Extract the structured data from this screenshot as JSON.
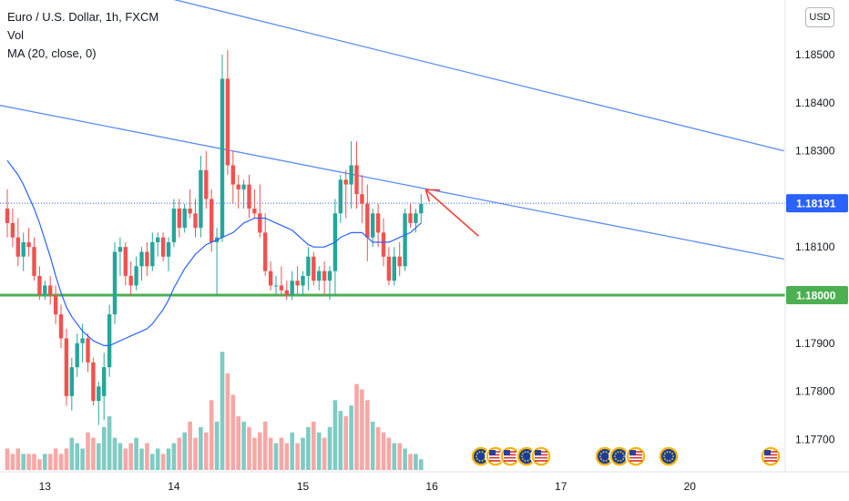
{
  "legend": {
    "title": "Euro / U.S. Dollar, 1h, FXCM",
    "vol_label": "Vol",
    "ma_label": "MA (20, close, 0)"
  },
  "currency_button": "USD",
  "colors": {
    "up": "#26a69a",
    "down": "#ef5350",
    "vol_up": "#80cbc4",
    "vol_down": "#f7a7a5",
    "ma": "#2962ff",
    "trend": "#5b8def",
    "support": "#4caf50",
    "arrow": "#f44336",
    "last_price_tag": "#2962ff",
    "support_tag": "#4caf50"
  },
  "chart_data": {
    "type": "candlestick",
    "instrument": "Euro / U.S. Dollar",
    "timeframe": "1h",
    "source": "FXCM",
    "ylim": [
      1.1764,
      1.1861
    ],
    "y_ticks": [
      "1.18500",
      "1.18400",
      "1.18300",
      "1.18100",
      "1.17900",
      "1.17800",
      "1.17700"
    ],
    "y_tick_values": [
      1.185,
      1.184,
      1.183,
      1.181,
      1.179,
      1.178,
      1.177
    ],
    "x_ticks": [
      {
        "label": "13",
        "bar": 7
      },
      {
        "label": "14",
        "bar": 31
      },
      {
        "label": "15",
        "bar": 55
      },
      {
        "label": "16",
        "bar": 79
      },
      {
        "label": "17",
        "bar": 103
      },
      {
        "label": "20",
        "bar": 127
      }
    ],
    "candles": [
      [
        1.1818,
        1.1822,
        1.1812,
        1.1815
      ],
      [
        1.1815,
        1.1818,
        1.181,
        1.1812
      ],
      [
        1.1812,
        1.1816,
        1.1806,
        1.1808
      ],
      [
        1.1808,
        1.1813,
        1.1805,
        1.1811
      ],
      [
        1.1811,
        1.1814,
        1.1808,
        1.181
      ],
      [
        1.181,
        1.1812,
        1.1803,
        1.1804
      ],
      [
        1.1804,
        1.1806,
        1.1799,
        1.18
      ],
      [
        1.18,
        1.1803,
        1.1799,
        1.1802
      ],
      [
        1.1802,
        1.1804,
        1.1798,
        1.18
      ],
      [
        1.18,
        1.1802,
        1.1794,
        1.1796
      ],
      [
        1.1796,
        1.1798,
        1.1789,
        1.1791
      ],
      [
        1.1791,
        1.1793,
        1.1777,
        1.1779
      ],
      [
        1.1779,
        1.1787,
        1.1776,
        1.1785
      ],
      [
        1.1785,
        1.1792,
        1.1783,
        1.179
      ],
      [
        1.179,
        1.1794,
        1.1786,
        1.1791
      ],
      [
        1.1791,
        1.1792,
        1.1784,
        1.1786
      ],
      [
        1.1786,
        1.1787,
        1.1777,
        1.1778
      ],
      [
        1.1778,
        1.1782,
        1.1773,
        1.1781
      ],
      [
        1.1779,
        1.1788,
        1.1774,
        1.1785
      ],
      [
        1.1785,
        1.1798,
        1.1783,
        1.1796
      ],
      [
        1.1796,
        1.1811,
        1.1794,
        1.1809
      ],
      [
        1.1809,
        1.1812,
        1.1804,
        1.181
      ],
      [
        1.181,
        1.1811,
        1.1802,
        1.1804
      ],
      [
        1.1804,
        1.1807,
        1.18,
        1.1802
      ],
      [
        1.1802,
        1.1808,
        1.1801,
        1.1806
      ],
      [
        1.1806,
        1.181,
        1.1803,
        1.1809
      ],
      [
        1.1809,
        1.1811,
        1.1804,
        1.1806
      ],
      [
        1.1806,
        1.1813,
        1.1805,
        1.1811
      ],
      [
        1.1811,
        1.1813,
        1.1808,
        1.1812
      ],
      [
        1.1812,
        1.1813,
        1.1807,
        1.1808
      ],
      [
        1.1808,
        1.1812,
        1.1805,
        1.1811
      ],
      [
        1.1811,
        1.182,
        1.181,
        1.1818
      ],
      [
        1.1818,
        1.182,
        1.1812,
        1.1814
      ],
      [
        1.1814,
        1.1819,
        1.1813,
        1.1818
      ],
      [
        1.1818,
        1.1822,
        1.1816,
        1.1817
      ],
      [
        1.1817,
        1.182,
        1.1812,
        1.1814
      ],
      [
        1.1814,
        1.1829,
        1.1812,
        1.1826
      ],
      [
        1.1826,
        1.183,
        1.1818,
        1.182
      ],
      [
        1.182,
        1.1822,
        1.1809,
        1.1811
      ],
      [
        1.1811,
        1.1814,
        1.18,
        1.1812
      ],
      [
        1.1812,
        1.185,
        1.1811,
        1.1845
      ],
      [
        1.1845,
        1.1851,
        1.1825,
        1.1827
      ],
      [
        1.1827,
        1.183,
        1.1819,
        1.1823
      ],
      [
        1.1823,
        1.1825,
        1.1818,
        1.1822
      ],
      [
        1.1822,
        1.1824,
        1.1818,
        1.1823
      ],
      [
        1.1823,
        1.1825,
        1.1816,
        1.1818
      ],
      [
        1.1818,
        1.1822,
        1.1816,
        1.1817
      ],
      [
        1.1817,
        1.1823,
        1.1812,
        1.1813
      ],
      [
        1.1813,
        1.1817,
        1.1804,
        1.1805
      ],
      [
        1.1805,
        1.1807,
        1.1801,
        1.1802
      ],
      [
        1.1802,
        1.1804,
        1.18,
        1.1802
      ],
      [
        1.1802,
        1.1806,
        1.18,
        1.1801
      ],
      [
        1.1801,
        1.1803,
        1.1799,
        1.18
      ],
      [
        1.18,
        1.1805,
        1.1799,
        1.1803
      ],
      [
        1.1803,
        1.1806,
        1.18,
        1.1802
      ],
      [
        1.1802,
        1.1805,
        1.18,
        1.1804
      ],
      [
        1.1804,
        1.181,
        1.1801,
        1.1808
      ],
      [
        1.1808,
        1.1809,
        1.1802,
        1.1803
      ],
      [
        1.1803,
        1.1806,
        1.1801,
        1.1805
      ],
      [
        1.1805,
        1.1807,
        1.18,
        1.1803
      ],
      [
        1.1803,
        1.1806,
        1.1799,
        1.1805
      ],
      [
        1.1805,
        1.182,
        1.18,
        1.1817
      ],
      [
        1.1817,
        1.1825,
        1.1815,
        1.1824
      ],
      [
        1.1824,
        1.1826,
        1.1816,
        1.1823
      ],
      [
        1.1823,
        1.1832,
        1.1818,
        1.1827
      ],
      [
        1.1827,
        1.1832,
        1.1818,
        1.1821
      ],
      [
        1.1821,
        1.1825,
        1.1815,
        1.1819
      ],
      [
        1.1819,
        1.1823,
        1.1807,
        1.1812
      ],
      [
        1.1812,
        1.1818,
        1.181,
        1.1817
      ],
      [
        1.1817,
        1.1819,
        1.181,
        1.1813
      ],
      [
        1.1813,
        1.1816,
        1.1806,
        1.1808
      ],
      [
        1.1808,
        1.181,
        1.1802,
        1.1803
      ],
      [
        1.1803,
        1.181,
        1.1802,
        1.1808
      ],
      [
        1.1808,
        1.1811,
        1.1804,
        1.1806
      ],
      [
        1.1806,
        1.1818,
        1.1805,
        1.1817
      ],
      [
        1.1817,
        1.1819,
        1.1814,
        1.1815
      ],
      [
        1.1815,
        1.1818,
        1.1813,
        1.1817
      ],
      [
        1.1817,
        1.1821,
        1.1815,
        1.1819
      ]
    ],
    "volume": [
      4,
      3,
      4,
      3,
      3,
      3,
      2,
      3,
      3,
      4,
      3,
      4,
      6,
      5,
      4,
      7,
      6,
      5,
      8,
      10,
      6,
      5,
      4,
      5,
      6,
      4,
      5,
      3,
      4,
      3,
      4,
      5,
      6,
      7,
      9,
      6,
      8,
      7,
      13,
      9,
      22,
      18,
      14,
      10,
      9,
      8,
      6,
      7,
      9,
      6,
      5,
      6,
      5,
      7,
      5,
      6,
      8,
      9,
      7,
      6,
      8,
      13,
      11,
      10,
      12,
      16,
      15,
      13,
      9,
      8,
      7,
      6,
      5,
      5,
      4,
      3,
      3,
      2
    ],
    "ma_values": [
      1.1828,
      1.18265,
      1.1825,
      1.1823,
      1.18205,
      1.1818,
      1.1815,
      1.18115,
      1.1808,
      1.1804,
      1.18005,
      1.17975,
      1.17955,
      1.1794,
      1.17925,
      1.17915,
      1.17905,
      1.179,
      1.17895,
      1.17895,
      1.179,
      1.17905,
      1.1791,
      1.17915,
      1.1792,
      1.17925,
      1.1793,
      1.1794,
      1.17955,
      1.1797,
      1.1799,
      1.18015,
      1.18035,
      1.18055,
      1.1807,
      1.18085,
      1.18095,
      1.18105,
      1.1811,
      1.18115,
      1.1812,
      1.18125,
      1.1813,
      1.1814,
      1.1815,
      1.18155,
      1.1816,
      1.1816,
      1.1816,
      1.18155,
      1.1815,
      1.18145,
      1.1814,
      1.18135,
      1.18125,
      1.18115,
      1.18105,
      1.181,
      1.181,
      1.181,
      1.18105,
      1.1811,
      1.1812,
      1.18125,
      1.1813,
      1.1813,
      1.1813,
      1.1812,
      1.1811,
      1.1811,
      1.1811,
      1.1811,
      1.18115,
      1.1812,
      1.18125,
      1.1813,
      1.1814,
      1.1815
    ],
    "trendlines": [
      {
        "bar1": -1.5,
        "price1": 1.18705,
        "bar2": 144.5,
        "price2": 1.183
      },
      {
        "bar1": -1.5,
        "price1": 1.18395,
        "bar2": 144.5,
        "price2": 1.18075
      }
    ],
    "support_level": {
      "price": 1.18,
      "label": "1.18000"
    },
    "last_price": {
      "price": 1.18191,
      "label": "1.18191"
    },
    "annotation": "arrow pointing at upper-left toward descending trendline",
    "events": {
      "count_left_group": 5,
      "count_right_group": 4,
      "count_far": 1,
      "icons": [
        "eu-flag-icon",
        "us-flag-icon",
        "us-flag-icon",
        "eu-flag-icon",
        "us-flag-icon",
        "eu-flag-icon",
        "eu-flag-icon",
        "us-flag-icon",
        "eu-flag-icon",
        "us-flag-icon"
      ]
    }
  }
}
